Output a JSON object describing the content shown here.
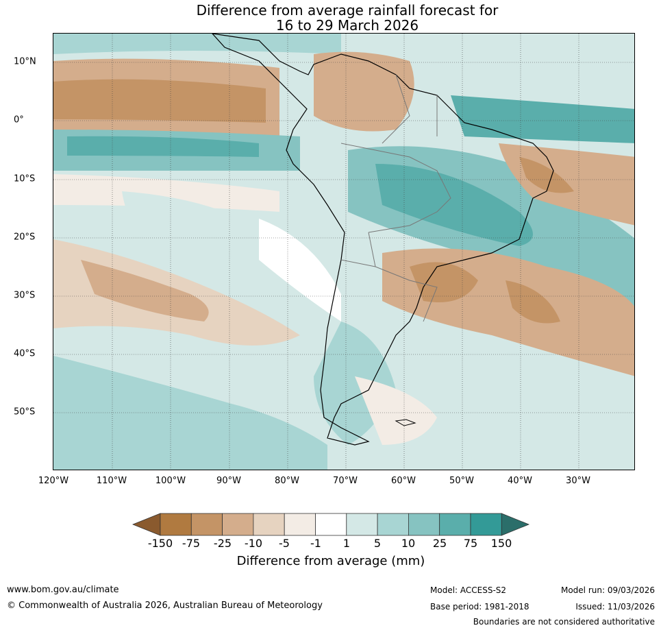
{
  "title_line1": "Difference from average rainfall forecast for",
  "title_line2": "16 to 29 March 2026",
  "lat_labels": [
    "10°N",
    "0°",
    "10°S",
    "20°S",
    "30°S",
    "40°S",
    "50°S"
  ],
  "lon_labels": [
    "120°W",
    "110°W",
    "100°W",
    "90°W",
    "80°W",
    "70°W",
    "60°W",
    "50°W",
    "40°W",
    "30°W"
  ],
  "colorbar": {
    "ticks": [
      "-150",
      "-75",
      "-25",
      "-10",
      "-5",
      "-1",
      "1",
      "5",
      "10",
      "25",
      "75",
      "150"
    ],
    "colors": [
      "#8a5a2e",
      "#b07a40",
      "#c49466",
      "#d4ad8c",
      "#e6d3c0",
      "#f3ece5",
      "#ffffff",
      "#d4e8e6",
      "#a8d5d3",
      "#86c3c1",
      "#5aaeab",
      "#339a97",
      "#2b6e6a"
    ],
    "label": "Difference from average (mm)"
  },
  "footer": {
    "website": "www.bom.gov.au/climate",
    "copyright": "© Commonwealth of Australia 2026, Australian Bureau of Meteorology",
    "model": "Model: ACCESS-S2",
    "base_period": "Base period: 1981-2018",
    "model_run": "Model run: 09/03/2026",
    "issued": "Issued: 11/03/2026",
    "disclaimer": "Boundaries are not considered authoritative"
  }
}
